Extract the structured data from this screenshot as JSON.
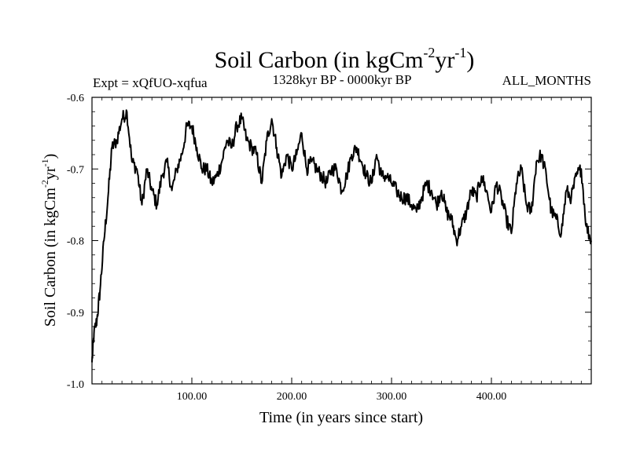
{
  "chart_data": {
    "type": "line",
    "title": "Soil Carbon (in kgCm",
    "title_sup1": "-2",
    "title_mid": "yr",
    "title_sup2": "-1",
    "title_end": ")",
    "subtitle_left": "Expt = xQfUO-xqfua",
    "subtitle_center": "1328kyr BP - 0000kyr BP",
    "subtitle_right": "ALL_MONTHS",
    "xlabel": "Time (in years since start)",
    "ylabel": "Soil Carbon (in kgCm",
    "ylabel_sup1": "-2",
    "ylabel_mid": "yr",
    "ylabel_sup2": "-1",
    "ylabel_end": ")",
    "xlim": [
      0,
      500
    ],
    "ylim": [
      -1.0,
      -0.6
    ],
    "xticks": [
      100,
      200,
      300,
      400
    ],
    "xtick_labels": [
      "100.00",
      "200.00",
      "300.00",
      "400.00"
    ],
    "yticks": [
      -1.0,
      -0.9,
      -0.8,
      -0.7,
      -0.6
    ],
    "ytick_labels": [
      "-1.0",
      "-0.9",
      "-0.8",
      "-0.7",
      "-0.6"
    ],
    "series": [
      {
        "name": "Soil Carbon",
        "x": [
          0,
          2,
          5,
          8,
          12,
          16,
          20,
          25,
          30,
          35,
          40,
          45,
          50,
          55,
          60,
          65,
          70,
          75,
          80,
          85,
          90,
          95,
          100,
          105,
          110,
          115,
          120,
          125,
          130,
          135,
          140,
          145,
          150,
          155,
          160,
          165,
          170,
          175,
          180,
          185,
          190,
          195,
          200,
          205,
          210,
          215,
          220,
          225,
          230,
          235,
          240,
          245,
          250,
          255,
          260,
          265,
          270,
          275,
          280,
          285,
          290,
          295,
          300,
          305,
          310,
          315,
          320,
          325,
          330,
          335,
          340,
          345,
          350,
          355,
          360,
          365,
          370,
          375,
          380,
          385,
          390,
          395,
          400,
          405,
          410,
          415,
          420,
          425,
          430,
          435,
          440,
          445,
          450,
          455,
          460,
          465,
          470,
          475,
          480,
          485,
          490,
          495,
          500
        ],
        "values": [
          -0.97,
          -0.93,
          -0.91,
          -0.87,
          -0.8,
          -0.74,
          -0.67,
          -0.66,
          -0.63,
          -0.62,
          -0.69,
          -0.7,
          -0.75,
          -0.7,
          -0.73,
          -0.75,
          -0.71,
          -0.69,
          -0.73,
          -0.7,
          -0.68,
          -0.64,
          -0.64,
          -0.67,
          -0.7,
          -0.7,
          -0.72,
          -0.71,
          -0.69,
          -0.66,
          -0.67,
          -0.64,
          -0.63,
          -0.66,
          -0.67,
          -0.68,
          -0.72,
          -0.66,
          -0.63,
          -0.67,
          -0.71,
          -0.68,
          -0.7,
          -0.68,
          -0.65,
          -0.7,
          -0.69,
          -0.7,
          -0.71,
          -0.72,
          -0.7,
          -0.7,
          -0.73,
          -0.71,
          -0.68,
          -0.67,
          -0.69,
          -0.71,
          -0.72,
          -0.68,
          -0.71,
          -0.71,
          -0.72,
          -0.73,
          -0.74,
          -0.74,
          -0.75,
          -0.76,
          -0.74,
          -0.72,
          -0.73,
          -0.75,
          -0.73,
          -0.76,
          -0.77,
          -0.8,
          -0.78,
          -0.76,
          -0.73,
          -0.74,
          -0.71,
          -0.73,
          -0.76,
          -0.72,
          -0.74,
          -0.77,
          -0.79,
          -0.72,
          -0.7,
          -0.75,
          -0.76,
          -0.69,
          -0.68,
          -0.71,
          -0.76,
          -0.77,
          -0.79,
          -0.73,
          -0.74,
          -0.71,
          -0.7,
          -0.78,
          -0.8
        ],
        "color": "#000000"
      }
    ]
  }
}
